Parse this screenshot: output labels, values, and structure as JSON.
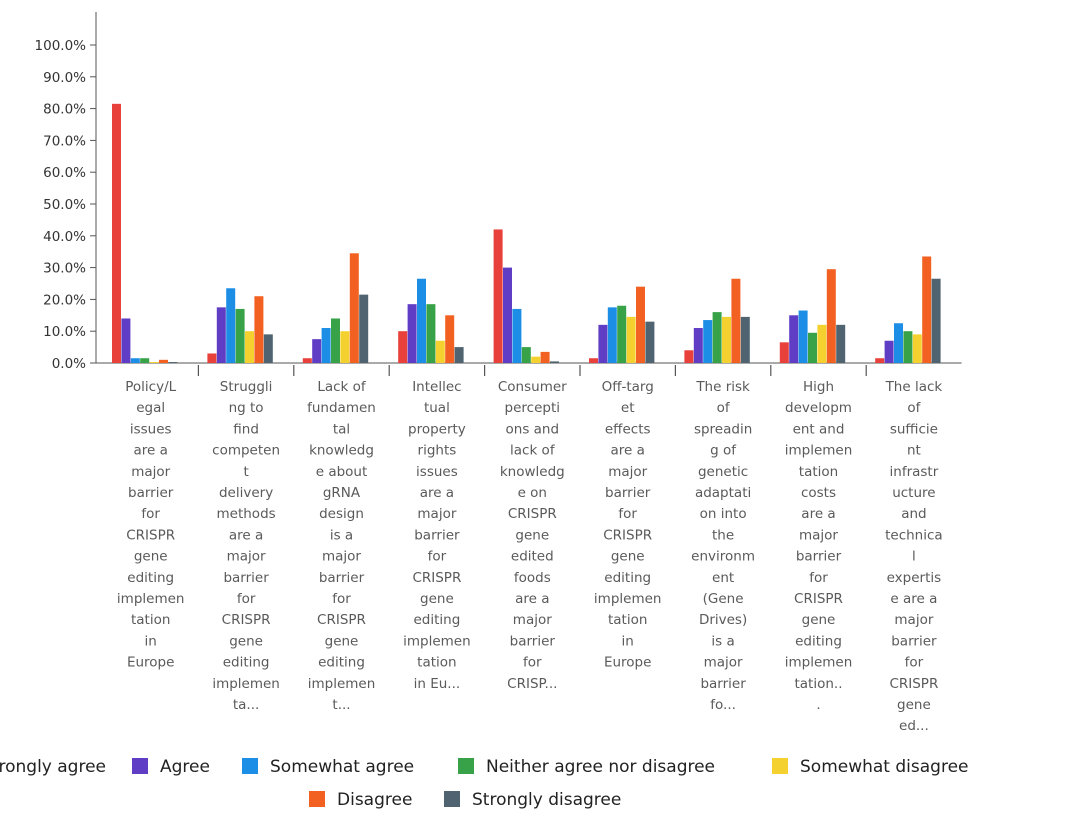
{
  "chart_data": {
    "type": "bar",
    "ylim": [
      0,
      100
    ],
    "y_ticks": [
      "0.0%",
      "10.0%",
      "20.0%",
      "30.0%",
      "40.0%",
      "50.0%",
      "60.0%",
      "70.0%",
      "80.0%",
      "90.0%",
      "100.0%"
    ],
    "grid": false,
    "legend_position": "bottom",
    "categories": [
      [
        "Policy/L",
        "egal",
        "issues",
        "are a",
        "major",
        "barrier",
        "for",
        "CRISPR",
        "gene",
        "editing",
        "implemen",
        "tation",
        "in",
        "Europe"
      ],
      [
        "Struggli",
        "ng to",
        "find",
        "competen",
        "t",
        "delivery",
        "methods",
        "are a",
        "major",
        "barrier",
        "for",
        "CRISPR",
        "gene",
        "editing",
        "implemen",
        "ta..."
      ],
      [
        "Lack of",
        "fundamen",
        "tal",
        "knowledg",
        "e about",
        "gRNA",
        "design",
        "is a",
        "major",
        "barrier",
        "for",
        "CRISPR",
        "gene",
        "editing",
        "implemen",
        "t..."
      ],
      [
        "Intellec",
        "tual",
        "property",
        "rights",
        "issues",
        "are a",
        "major",
        "barrier",
        "for",
        "CRISPR",
        "gene",
        "editing",
        "implemen",
        "tation",
        "in Eu..."
      ],
      [
        "Consumer",
        "percepti",
        "ons and",
        "lack of",
        "knowledg",
        "e on",
        "CRISPR",
        "gene",
        "edited",
        "foods",
        "are a",
        "major",
        "barrier",
        "for",
        "CRISP..."
      ],
      [
        "Off-targ",
        "et",
        "effects",
        "are a",
        "major",
        "barrier",
        "for",
        "CRISPR",
        "gene",
        "editing",
        "implemen",
        "tation",
        "in",
        "Europe"
      ],
      [
        "The risk",
        "of",
        "spreadin",
        "g of",
        "genetic",
        "adaptati",
        "on into",
        "the",
        "environm",
        "ent",
        "(Gene",
        "Drives)",
        "is a",
        "major",
        "barrier",
        "fo..."
      ],
      [
        "High",
        "developm",
        "ent and",
        "implemen",
        "tation",
        "costs",
        "are a",
        "major",
        "barrier",
        "for",
        "CRISPR",
        "gene",
        "editing",
        "implemen",
        "tation..",
        "."
      ],
      [
        "The lack",
        "of",
        "sufficie",
        "nt",
        "infrastr",
        "ucture",
        "and",
        "technica",
        "l",
        "expertis",
        "e are a",
        "major",
        "barrier",
        "for",
        "CRISPR",
        "gene",
        "ed..."
      ]
    ],
    "series": [
      {
        "name": "Strongly agree",
        "color": "#e8403a",
        "values": [
          81.5,
          3.0,
          1.5,
          10.0,
          42.0,
          1.5,
          4.0,
          6.5,
          1.5
        ]
      },
      {
        "name": "Agree",
        "color": "#5f3dc4",
        "values": [
          14.0,
          17.5,
          7.5,
          18.5,
          30.0,
          12.0,
          11.0,
          15.0,
          7.0
        ]
      },
      {
        "name": "Somewhat agree",
        "color": "#1c8ee6",
        "values": [
          1.5,
          23.5,
          11.0,
          26.5,
          17.0,
          17.5,
          13.5,
          16.5,
          12.5
        ]
      },
      {
        "name": "Neither agree nor disagree",
        "color": "#37a247",
        "values": [
          1.5,
          17.0,
          14.0,
          18.5,
          5.0,
          18.0,
          16.0,
          9.5,
          10.0
        ]
      },
      {
        "name": "Somewhat disagree",
        "color": "#f5d130",
        "values": [
          0.3,
          10.0,
          10.0,
          7.0,
          2.0,
          14.5,
          14.5,
          12.0,
          9.0
        ]
      },
      {
        "name": "Disagree",
        "color": "#f26122",
        "values": [
          1.0,
          21.0,
          34.5,
          15.0,
          3.5,
          24.0,
          26.5,
          29.5,
          33.5
        ]
      },
      {
        "name": "Strongly disagree",
        "color": "#4f6470",
        "values": [
          0.3,
          9.0,
          21.5,
          5.0,
          0.5,
          13.0,
          14.5,
          12.0,
          26.5
        ]
      }
    ]
  }
}
